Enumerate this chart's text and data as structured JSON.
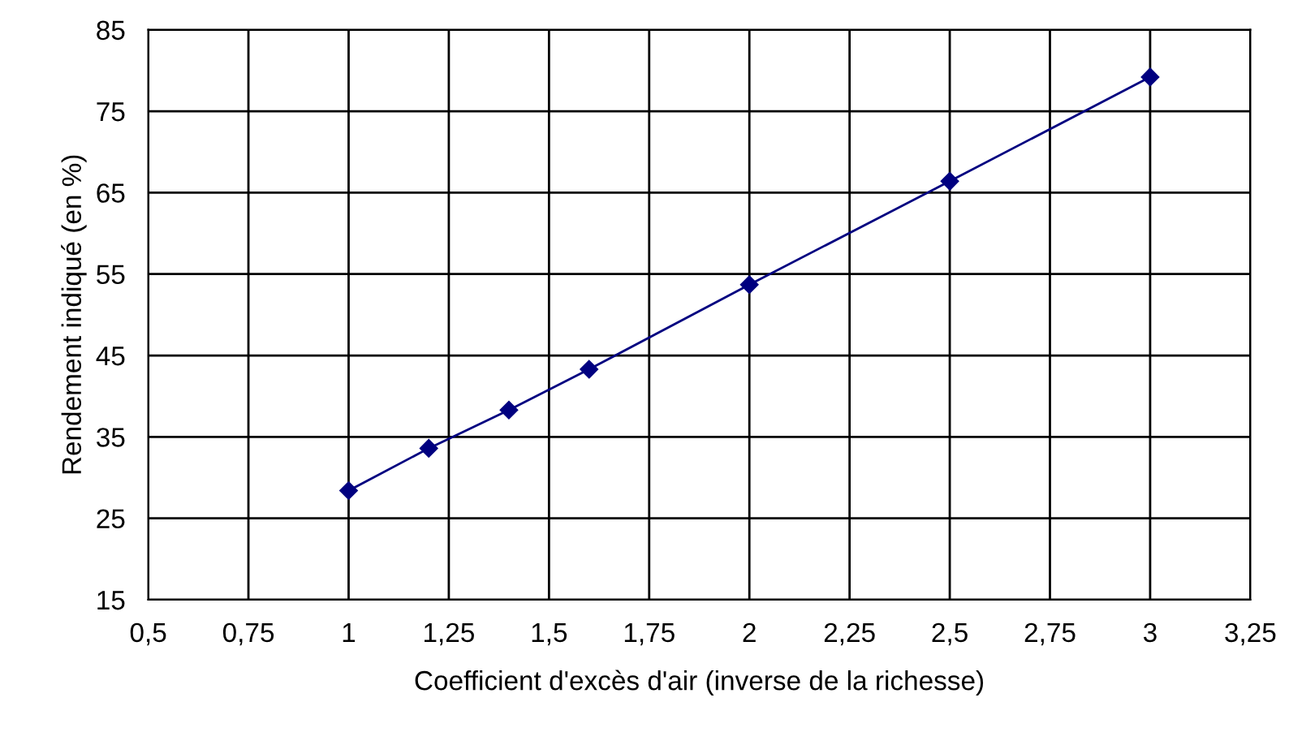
{
  "chart_data": {
    "type": "line",
    "xlabel": "Coefficient d'excès d'air (inverse de la richesse)",
    "ylabel": "Rendement indiqué (en %)",
    "x": [
      1,
      1.2,
      1.4,
      1.6,
      2,
      2.5,
      3
    ],
    "series": [
      {
        "color": "#000080",
        "values": [
          28.4,
          33.6,
          38.3,
          43.3,
          53.7,
          66.4,
          79.2
        ]
      }
    ],
    "xlim": [
      0.5,
      3.25
    ],
    "ylim": [
      15,
      85
    ],
    "xticks": [
      {
        "value": 0.5,
        "label": "0,5"
      },
      {
        "value": 0.75,
        "label": "0,75"
      },
      1,
      {
        "value": 1.25,
        "label": "1,25"
      },
      {
        "value": 1.5,
        "label": "1,5"
      },
      {
        "value": 1.75,
        "label": "1,75"
      },
      2,
      {
        "value": 2.25,
        "label": "2,25"
      },
      {
        "value": 2.5,
        "label": "2,5"
      },
      {
        "value": 2.75,
        "label": "2,75"
      },
      3,
      {
        "value": 3.25,
        "label": "3,25"
      }
    ],
    "yticks": [
      15,
      25,
      35,
      45,
      55,
      65,
      75,
      85
    ],
    "grid": true,
    "marker": "diamond",
    "line_style": "solid",
    "legend": false
  }
}
